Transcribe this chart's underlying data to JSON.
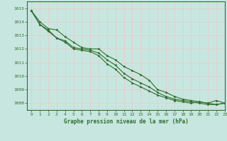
{
  "title": "Graphe pression niveau de la mer (hPa)",
  "background_color": "#c8e6e0",
  "grid_color": "#e8c8c8",
  "line_color": "#2d6e2d",
  "xlim": [
    -0.5,
    23
  ],
  "ylim": [
    1007.5,
    1015.5
  ],
  "yticks": [
    1008,
    1009,
    1010,
    1011,
    1012,
    1013,
    1014,
    1015
  ],
  "xticks": [
    0,
    1,
    2,
    3,
    4,
    5,
    6,
    7,
    8,
    9,
    10,
    11,
    12,
    13,
    14,
    15,
    16,
    17,
    18,
    19,
    20,
    21,
    22,
    23
  ],
  "series": [
    [
      1014.8,
      1014.0,
      1013.5,
      1013.4,
      1012.9,
      1012.5,
      1012.1,
      1012.0,
      1012.0,
      1011.5,
      1011.2,
      1010.7,
      1010.4,
      1010.1,
      1009.7,
      1009.0,
      1008.8,
      1008.5,
      1008.3,
      1008.2,
      1008.1,
      1008.0,
      1007.9,
      1008.0
    ],
    [
      1014.8,
      1013.8,
      1013.4,
      1012.8,
      1012.6,
      1012.1,
      1012.0,
      1011.9,
      1011.7,
      1011.2,
      1010.8,
      1010.2,
      1009.8,
      1009.5,
      1009.2,
      1008.8,
      1008.5,
      1008.3,
      1008.2,
      1008.1,
      1008.0,
      1007.9,
      1007.9,
      1008.0
    ],
    [
      1014.8,
      1013.8,
      1013.3,
      1012.8,
      1012.5,
      1012.0,
      1011.9,
      1011.8,
      1011.5,
      1010.9,
      1010.5,
      1009.9,
      1009.5,
      1009.2,
      1008.9,
      1008.6,
      1008.4,
      1008.2,
      1008.1,
      1008.0,
      1008.1,
      1008.0,
      1008.2,
      1008.0
    ]
  ],
  "figsize": [
    3.2,
    2.0
  ],
  "dpi": 100
}
